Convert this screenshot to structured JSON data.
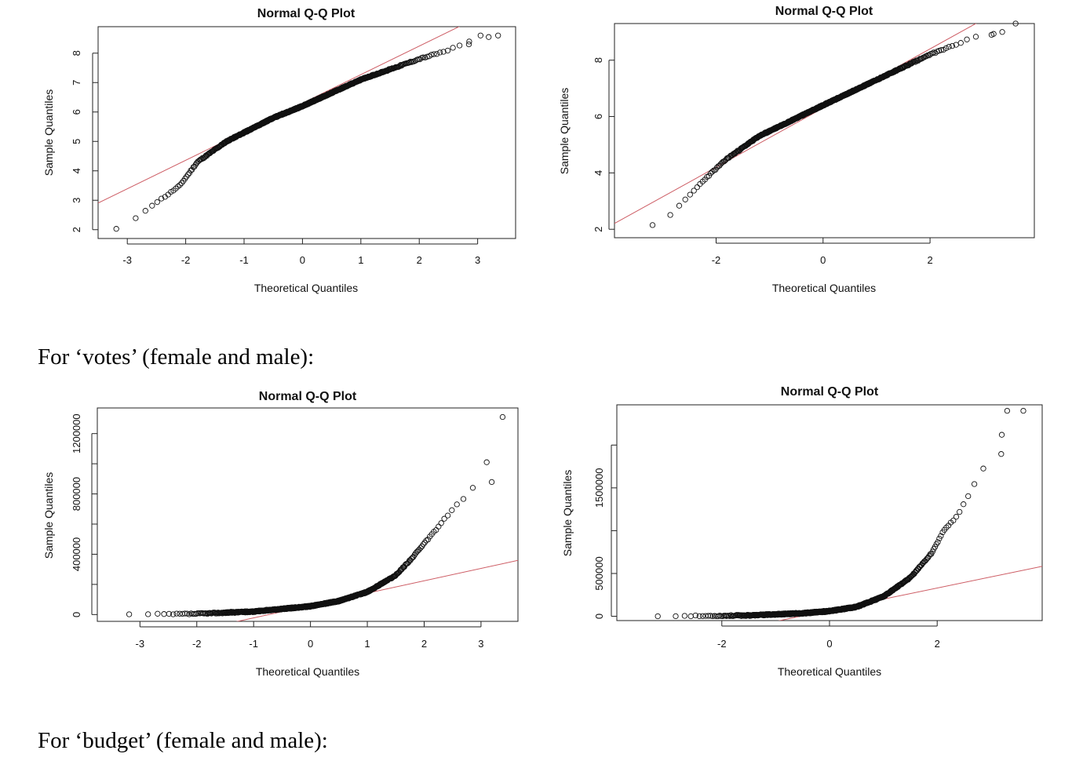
{
  "captions": {
    "votes": "For ‘votes’ (female and male):",
    "budget": "For ‘budget’ (female and male):"
  },
  "colors": {
    "line": "#cd5c64",
    "point": "#111111"
  },
  "chart_data": [
    {
      "type": "scatter",
      "title": "Normal Q-Q Plot",
      "xlabel": "Theoretical Quantiles",
      "ylabel": "Sample Quantiles",
      "xlim": [
        -3.5,
        3.65
      ],
      "ylim": [
        1.7,
        8.9
      ],
      "xticks": [
        -3,
        -2,
        -1,
        0,
        1,
        2,
        3
      ],
      "yticks": [
        2,
        3,
        4,
        5,
        6,
        7,
        8
      ],
      "ytick_labels": [
        "2",
        "3",
        "4",
        "5",
        "6",
        "7",
        "8"
      ],
      "reference_line": {
        "slope": 0.97,
        "intercept": 6.3
      },
      "shape": "lefttail",
      "n": 700,
      "key_points": [
        [
          -3.4,
          1.9
        ],
        [
          -3.05,
          2.1
        ],
        [
          -2.9,
          2.3
        ],
        [
          -2.6,
          2.8
        ],
        [
          -2.3,
          3.2
        ],
        [
          -2.1,
          3.5
        ],
        [
          -1.8,
          4.3
        ],
        [
          -1.3,
          5.0
        ],
        [
          -0.5,
          5.8
        ],
        [
          0,
          6.2
        ],
        [
          1,
          7.1
        ],
        [
          2,
          7.8
        ],
        [
          2.5,
          8.1
        ],
        [
          3.0,
          8.5
        ],
        [
          3.3,
          8.6
        ]
      ],
      "outliers": [
        [
          3.05,
          8.6
        ],
        [
          3.35,
          8.6
        ],
        [
          2.85,
          8.3
        ]
      ]
    },
    {
      "type": "scatter",
      "title": "Normal Q-Q Plot",
      "xlabel": "Theoretical Quantiles",
      "ylabel": "Sample Quantiles",
      "xlim": [
        -3.9,
        3.95
      ],
      "ylim": [
        1.7,
        9.3
      ],
      "xticks": [
        -2,
        0,
        2
      ],
      "yticks": [
        2,
        4,
        6,
        8
      ],
      "ytick_labels": [
        "2",
        "4",
        "6",
        "8"
      ],
      "reference_line": {
        "slope": 1.05,
        "intercept": 6.3
      },
      "shape": "lefttail",
      "n": 700,
      "key_points": [
        [
          -3.6,
          1.9
        ],
        [
          -3.35,
          2.1
        ],
        [
          -3.1,
          2.2
        ],
        [
          -2.9,
          2.4
        ],
        [
          -2.7,
          2.8
        ],
        [
          -2.5,
          3.2
        ],
        [
          -2.2,
          3.8
        ],
        [
          -1.8,
          4.5
        ],
        [
          -1.2,
          5.3
        ],
        [
          0,
          6.4
        ],
        [
          1,
          7.3
        ],
        [
          2,
          8.2
        ],
        [
          2.8,
          8.8
        ],
        [
          3.3,
          9.0
        ]
      ],
      "outliers": [
        [
          3.6,
          9.3
        ],
        [
          3.35,
          9.0
        ],
        [
          3.15,
          8.9
        ]
      ]
    },
    {
      "type": "scatter",
      "title": "Normal Q-Q Plot",
      "xlabel": "Theoretical Quantiles",
      "ylabel": "Sample Quantiles",
      "xlim": [
        -3.75,
        3.65
      ],
      "ylim": [
        -45000,
        1370000
      ],
      "xticks": [
        -3,
        -2,
        -1,
        0,
        1,
        2,
        3
      ],
      "yticks": [
        0,
        200000,
        400000,
        600000,
        800000,
        1000000,
        1200000
      ],
      "ytick_labels": [
        "0",
        "",
        "400000",
        "",
        "800000",
        "",
        "1200000"
      ],
      "reference_line": {
        "slope": 82000,
        "intercept": 60000
      },
      "shape": "righttail",
      "n": 700,
      "key_points": [
        [
          -3.4,
          0
        ],
        [
          -2.5,
          2000
        ],
        [
          -2,
          5000
        ],
        [
          -1,
          20000
        ],
        [
          0,
          55000
        ],
        [
          0.5,
          90000
        ],
        [
          1,
          150000
        ],
        [
          1.5,
          260000
        ],
        [
          1.8,
          380000
        ],
        [
          2.2,
          560000
        ],
        [
          2.5,
          700000
        ],
        [
          2.75,
          790000
        ],
        [
          2.95,
          880000
        ]
      ],
      "outliers": [
        [
          3.1,
          1010000
        ],
        [
          3.38,
          1310000
        ]
      ]
    },
    {
      "type": "scatter",
      "title": "Normal Q-Q Plot",
      "xlabel": "Theoretical Quantiles",
      "ylabel": "Sample Quantiles",
      "xlim": [
        -3.95,
        3.95
      ],
      "ylim": [
        -50000,
        2470000
      ],
      "xticks": [
        -2,
        0,
        2
      ],
      "yticks": [
        0,
        500000,
        1000000,
        1500000,
        2000000
      ],
      "ytick_labels": [
        "0",
        "500000",
        "",
        "1500000",
        ""
      ],
      "reference_line": {
        "slope": 130000,
        "intercept": 70000
      },
      "shape": "righttail",
      "n": 700,
      "key_points": [
        [
          -3.7,
          0
        ],
        [
          -2.5,
          2000
        ],
        [
          -1.5,
          10000
        ],
        [
          -0.5,
          35000
        ],
        [
          0,
          60000
        ],
        [
          0.5,
          110000
        ],
        [
          1,
          230000
        ],
        [
          1.5,
          450000
        ],
        [
          1.9,
          740000
        ],
        [
          2.1,
          980000
        ],
        [
          2.4,
          1200000
        ],
        [
          2.7,
          1550000
        ],
        [
          3.0,
          1900000
        ]
      ],
      "outliers": [
        [
          3.2,
          2120000
        ],
        [
          3.3,
          2400000
        ],
        [
          3.6,
          2400000
        ]
      ]
    }
  ]
}
